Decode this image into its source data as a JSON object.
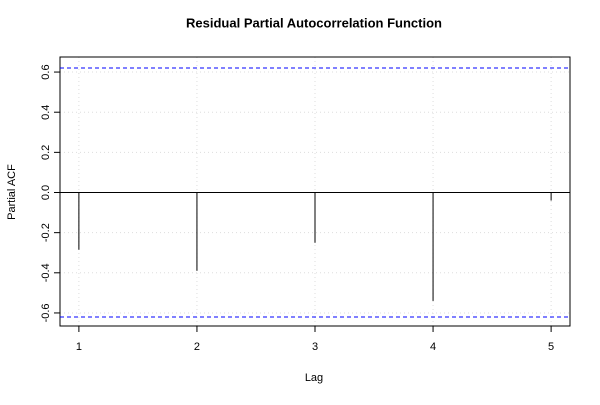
{
  "chart_data": {
    "type": "pacf",
    "title": "Residual Partial Autocorrelation Function",
    "xlabel": "Lag",
    "ylabel": "Partial ACF",
    "x": [
      1,
      2,
      3,
      4,
      5
    ],
    "values": [
      -0.285,
      -0.39,
      -0.25,
      -0.54,
      -0.04
    ],
    "color": "#000000",
    "confidence_bounds": [
      0.62,
      -0.62
    ],
    "bound_color": "#0000ff",
    "xlim": [
      0.84,
      5.16
    ],
    "ylim": [
      -0.665,
      0.675
    ],
    "xticks": [
      1,
      2,
      3,
      4,
      5
    ],
    "yticks": [
      0.6,
      0.4,
      0.2,
      {
        "value": 0,
        "label": "0.0"
      },
      -0.2,
      -0.4,
      -0.6
    ],
    "grid": true
  }
}
